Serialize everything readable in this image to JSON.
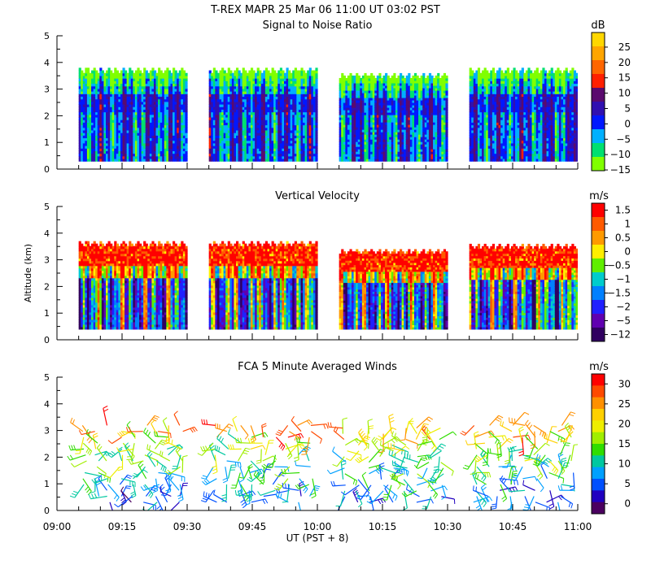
{
  "chart_data": [
    {
      "type": "heatmap",
      "title": "T-REX   MAPR 25 Mar 06   11:00 UT   03:02   PST",
      "subtitle": "Signal to Noise Ratio",
      "ylabel": "",
      "ylim": [
        0,
        5
      ],
      "yticks": [
        "0",
        "1",
        "2",
        "3",
        "4",
        "5"
      ],
      "colorbar_unit": "dB",
      "colorbar_labels": [
        "25",
        "20",
        "15",
        "10",
        "5",
        "0",
        "−5",
        "−10",
        "−15"
      ],
      "colors": [
        "#ffd700",
        "#ffa500",
        "#ff6600",
        "#ff2000",
        "#5a0a6e",
        "#3010b0",
        "#0018ff",
        "#00b0ff",
        "#00e070",
        "#80ff00"
      ],
      "segments": [
        {
          "start_min": 5,
          "end_min": 30,
          "ybottom": 0.3,
          "ytop": 3.8
        },
        {
          "start_min": 35,
          "end_min": 60,
          "ybottom": 0.3,
          "ytop": 3.8
        },
        {
          "start_min": 65,
          "end_min": 90,
          "ybottom": 0.3,
          "ytop": 3.6
        },
        {
          "start_min": 95,
          "end_min": 120,
          "ybottom": 0.3,
          "ytop": 3.8
        }
      ]
    },
    {
      "type": "heatmap",
      "title": "Vertical Velocity",
      "ylabel": "Altitude (km)",
      "ylim": [
        0,
        5
      ],
      "yticks": [
        "0",
        "1",
        "2",
        "3",
        "4",
        "5"
      ],
      "colorbar_unit": "m/s",
      "colorbar_labels": [
        "1.5",
        "1",
        "0.5",
        "0",
        "−0.5",
        "−1",
        "−1.5",
        "−2",
        "−5",
        "−12"
      ],
      "colors": [
        "#ff0000",
        "#ff5a00",
        "#ff9a00",
        "#ffee00",
        "#60ee00",
        "#00cccc",
        "#0080ff",
        "#2020ff",
        "#6000b0",
        "#300060"
      ],
      "segments": [
        {
          "start_min": 5,
          "end_min": 30,
          "ybottom": 0.4,
          "ytop": 3.7
        },
        {
          "start_min": 35,
          "end_min": 60,
          "ybottom": 0.4,
          "ytop": 3.7
        },
        {
          "start_min": 65,
          "end_min": 90,
          "ybottom": 0.4,
          "ytop": 3.4
        },
        {
          "start_min": 95,
          "end_min": 120,
          "ybottom": 0.4,
          "ytop": 3.6
        }
      ]
    },
    {
      "type": "scatter",
      "title": "FCA 5 Minute Averaged Winds",
      "ylabel": "",
      "xlabel": "UT  (PST + 8)",
      "ylim": [
        0,
        5
      ],
      "yticks": [
        "0",
        "1",
        "2",
        "3",
        "4",
        "5"
      ],
      "xticks": [
        "09:00",
        "09:15",
        "09:30",
        "09:45",
        "10:00",
        "10:15",
        "10:30",
        "10:45",
        "11:00"
      ],
      "colorbar_unit": "m/s",
      "colorbar_labels": [
        "30",
        "25",
        "20",
        "15",
        "10",
        "5",
        "0"
      ],
      "colors": [
        "#ff0000",
        "#ff4a00",
        "#ff9000",
        "#ffd000",
        "#eeee00",
        "#a0ee00",
        "#30dd00",
        "#00c8a0",
        "#00a0ff",
        "#0050ff",
        "#2000c0",
        "#4b0060"
      ],
      "segments": [
        {
          "start_min": 5,
          "end_min": 30,
          "ybottom": 0.2,
          "ytop": 3.3
        },
        {
          "start_min": 35,
          "end_min": 60,
          "ybottom": 0.2,
          "ytop": 3.3
        },
        {
          "start_min": 65,
          "end_min": 90,
          "ybottom": 0.2,
          "ytop": 3.2
        },
        {
          "start_min": 95,
          "end_min": 120,
          "ybottom": 0.2,
          "ytop": 3.3
        }
      ]
    }
  ]
}
